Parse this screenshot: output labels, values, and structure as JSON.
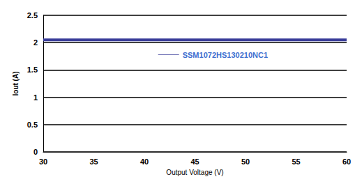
{
  "chart_data": {
    "type": "line",
    "x_label": "Output Voltage (V)",
    "y_label": "Iout (A)",
    "x": [
      30,
      35,
      40,
      45,
      50,
      55,
      60
    ],
    "series": [
      {
        "name": "SSM1072HS130210NC1",
        "color": "#3a3d9a",
        "values": [
          2.05,
          2.05,
          2.05,
          2.05,
          2.05,
          2.05,
          2.05
        ]
      }
    ],
    "xlim": [
      30,
      60
    ],
    "xticks": [
      30,
      35,
      40,
      45,
      50,
      55,
      60
    ],
    "ylim": [
      0,
      2.5
    ],
    "yticks": [
      0,
      0.5,
      1,
      1.5,
      2,
      2.5
    ],
    "grid": true,
    "legend": "upper right"
  }
}
